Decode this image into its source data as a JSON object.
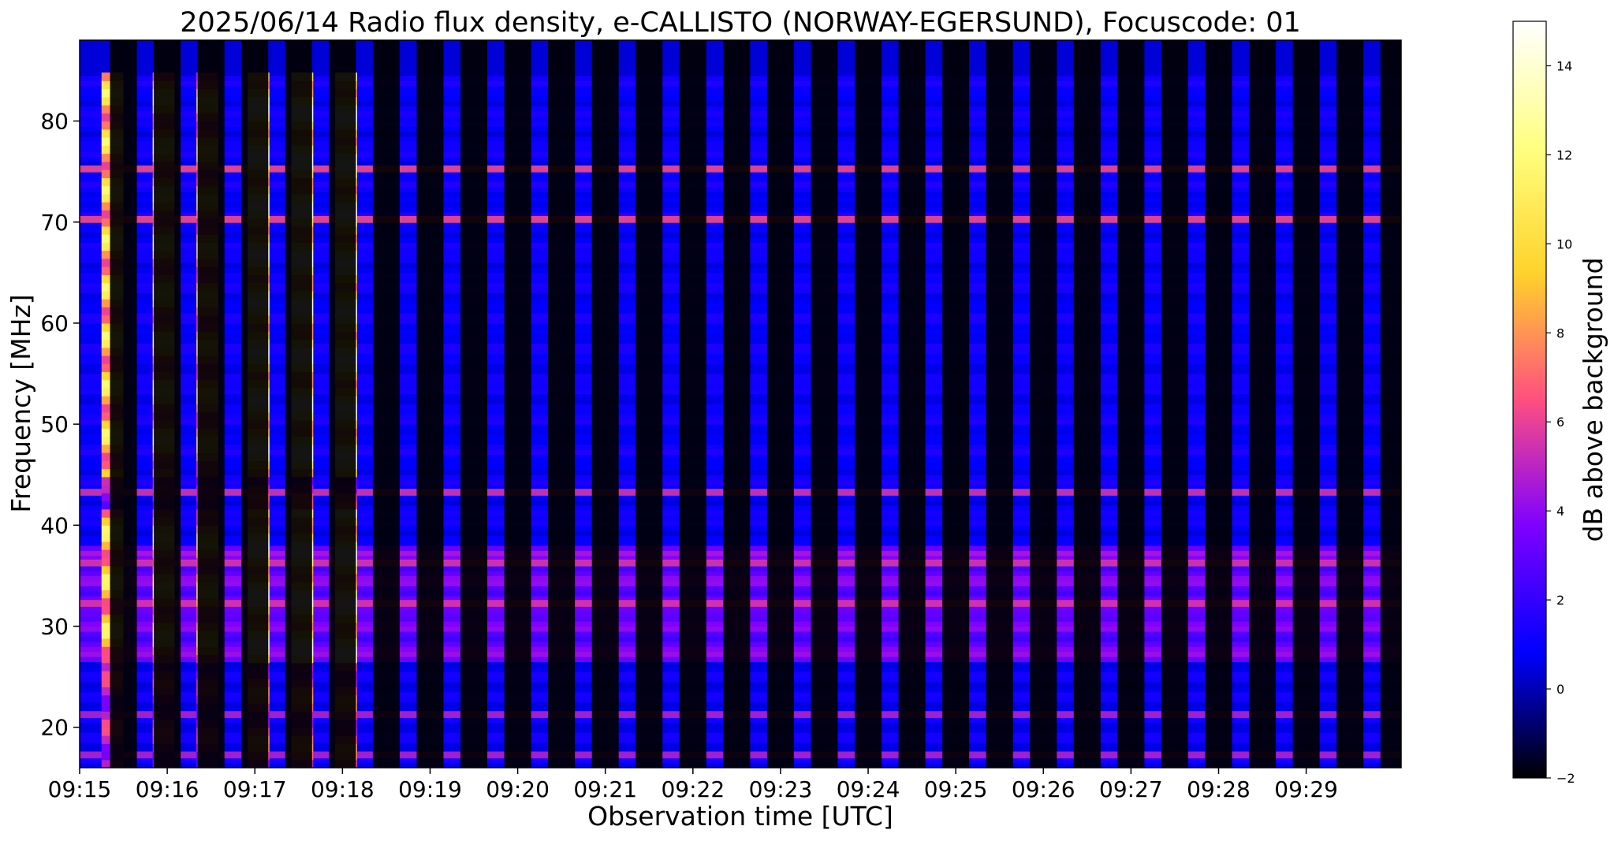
{
  "chart_data": {
    "type": "heatmap",
    "title": "2025/06/14  Radio flux density, e-CALLISTO (NORWAY-EGERSUND), Focuscode: 01",
    "xlabel": "Observation time [UTC]",
    "ylabel": "Frequency [MHz]",
    "x_ticks": [
      "09:15",
      "09:16",
      "09:17",
      "09:18",
      "09:19",
      "09:20",
      "09:21",
      "09:22",
      "09:23",
      "09:24",
      "09:25",
      "09:26",
      "09:27",
      "09:28",
      "09:29"
    ],
    "x_range": [
      "09:15:00",
      "09:30:05"
    ],
    "y_ticks": [
      20,
      30,
      40,
      50,
      60,
      70,
      80
    ],
    "y_range": [
      16,
      88
    ],
    "colorbar": {
      "label": "dB above background",
      "ticks": [
        -2,
        0,
        2,
        4,
        6,
        8,
        10,
        12,
        14
      ],
      "range": [
        -2,
        15
      ],
      "colormap": "gnuplot2",
      "colors": [
        "#000000",
        "#0000ff",
        "#7f00ff",
        "#ff4f7f",
        "#ffd22b",
        "#ffff80",
        "#ffffff"
      ]
    },
    "bursts": [
      {
        "start": "09:15:15",
        "end": "09:15:30",
        "intensity_db": 12
      },
      {
        "start": "09:15:50",
        "end": "09:16:05",
        "intensity_db": 12
      },
      {
        "start": "09:16:20",
        "end": "09:16:35",
        "intensity_db": 11
      },
      {
        "start": "09:16:55",
        "end": "09:17:10",
        "intensity_db": 15
      },
      {
        "start": "09:17:25",
        "end": "09:17:40",
        "intensity_db": 15
      },
      {
        "start": "09:17:55",
        "end": "09:18:10",
        "intensity_db": 15
      }
    ],
    "spectral_features": {
      "bright_band_mhz": [
        26,
        38
      ],
      "rfi_lines_mhz": [
        75,
        70,
        43,
        36,
        32,
        21,
        17
      ]
    }
  }
}
